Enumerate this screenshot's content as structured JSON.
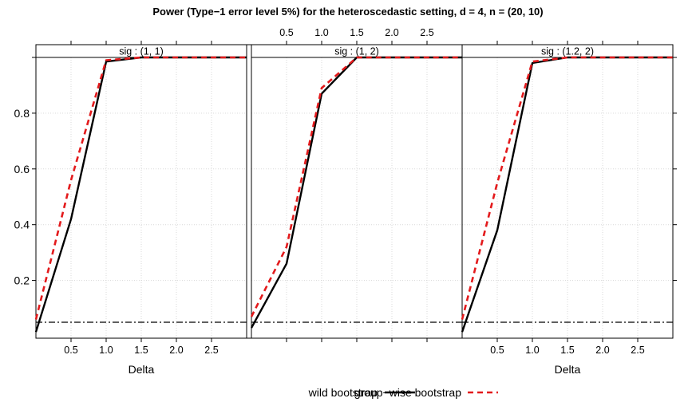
{
  "chart_data": {
    "type": "line",
    "title": "Power (Type−1 error level 5%) for the heteroscedastic setting, d = 4, n = (20, 10)",
    "xlabel": "Delta",
    "ylabel": "",
    "xlim": [
      0,
      3
    ],
    "ylim": [
      0,
      1
    ],
    "xticks": [
      0.5,
      1.0,
      1.5,
      2.0,
      2.5
    ],
    "xtick_labels": [
      "0.5",
      "1.0",
      "1.5",
      "2.0",
      "2.5"
    ],
    "yticks": [
      0.2,
      0.4,
      0.6,
      0.8
    ],
    "ytick_labels": [
      "0.2",
      "0.4",
      "0.6",
      "0.8"
    ],
    "reference_line": 0.05,
    "grid": true,
    "legend_position": "bottom",
    "panels": [
      {
        "strip": "sig : (1, 1)",
        "x": [
          0,
          0.5,
          1.0,
          1.5,
          2.0,
          2.5,
          3.0
        ],
        "series": [
          {
            "name": "wild bootstrap",
            "values": [
              0.015,
              0.42,
              0.985,
              1.0,
              1.0,
              1.0,
              1.0
            ]
          },
          {
            "name": "group−wise bootstrap",
            "values": [
              0.06,
              0.56,
              0.99,
              1.0,
              1.0,
              1.0,
              1.0
            ]
          }
        ]
      },
      {
        "strip": "sig : (1, 2)",
        "x": [
          0,
          0.5,
          1.0,
          1.5,
          2.0,
          2.5,
          3.0
        ],
        "series": [
          {
            "name": "wild bootstrap",
            "values": [
              0.03,
              0.26,
              0.87,
              1.0,
              1.0,
              1.0,
              1.0
            ]
          },
          {
            "name": "group−wise bootstrap",
            "values": [
              0.07,
              0.32,
              0.89,
              1.0,
              1.0,
              1.0,
              1.0
            ]
          }
        ]
      },
      {
        "strip": "sig : (1.2, 2)",
        "x": [
          0,
          0.5,
          1.0,
          1.5,
          2.0,
          2.5,
          3.0
        ],
        "series": [
          {
            "name": "wild bootstrap",
            "values": [
              0.015,
              0.38,
              0.98,
              1.0,
              1.0,
              1.0,
              1.0
            ]
          },
          {
            "name": "group−wise bootstrap",
            "values": [
              0.06,
              0.55,
              0.985,
              1.0,
              1.0,
              1.0,
              1.0
            ]
          }
        ]
      }
    ],
    "legend": [
      {
        "label": "wild bootstrap",
        "color": "#000000",
        "dash": "solid"
      },
      {
        "label": "group−wise bootstrap",
        "color": "#e31a1c",
        "dash": "dashed"
      }
    ]
  }
}
